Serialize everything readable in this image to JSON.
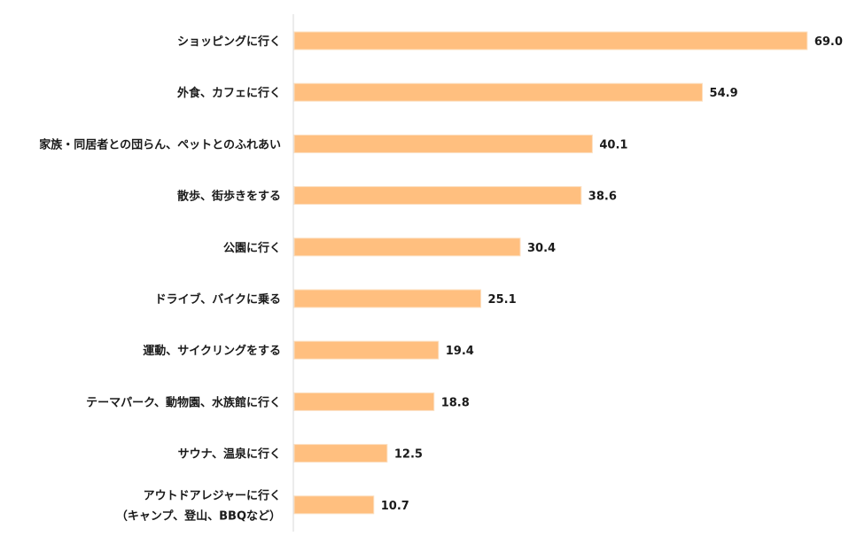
{
  "chart_data": {
    "type": "bar",
    "orientation": "horizontal",
    "categories": [
      [
        "ショッピングに行く"
      ],
      [
        "外食、カフェに行く"
      ],
      [
        "家族・同居者との団らん、ペットとのふれあい"
      ],
      [
        "散歩、街歩きをする"
      ],
      [
        "公園に行く"
      ],
      [
        "ドライブ、バイクに乗る"
      ],
      [
        "運動、サイクリングをする"
      ],
      [
        "テーマパーク、動物園、水族館に行く"
      ],
      [
        "サウナ、温泉に行く"
      ],
      [
        "アウトドアレジャーに行く",
        "（キャンプ、登山、BBQなど）"
      ]
    ],
    "values": [
      69.0,
      54.9,
      40.1,
      38.6,
      30.4,
      25.1,
      19.4,
      18.8,
      12.5,
      10.7
    ],
    "value_labels": [
      "69.0",
      "54.9",
      "40.1",
      "38.6",
      "30.4",
      "25.1",
      "19.4",
      "18.8",
      "12.5",
      "10.7"
    ],
    "xlim": [
      0,
      72
    ],
    "bar_color": "#ffbf7f",
    "bar_edge_color": "#fce0c2",
    "axis_color": "#d9d9d9",
    "grid": false,
    "legend": false
  }
}
